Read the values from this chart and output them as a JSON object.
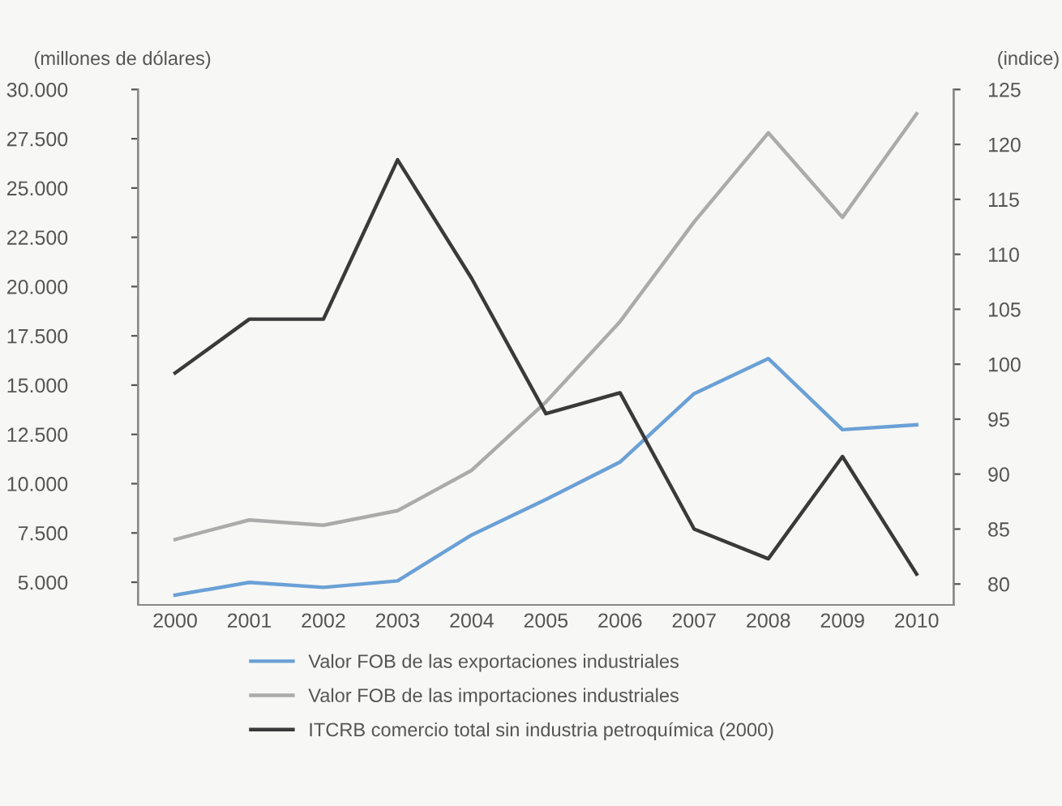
{
  "chart_data": {
    "type": "line",
    "ylabel": "(millones de dólares)",
    "y2label": "(indice)",
    "categories": [
      "2000",
      "2001",
      "2002",
      "2003",
      "2004",
      "2005",
      "2006",
      "2007",
      "2008",
      "2009",
      "2010"
    ],
    "series": [
      {
        "name": "Valor FOB de las exportaciones industriales",
        "color": "#6aa0d6",
        "values": [
          4350,
          4990,
          4740,
          5070,
          7400,
          9200,
          11100,
          14570,
          16350,
          12740,
          12990
        ]
      },
      {
        "name": "Valor FOB de las importaciones industriales",
        "color": "#ababab",
        "values": [
          7170,
          8160,
          7890,
          8630,
          10680,
          14140,
          18220,
          23280,
          27800,
          23510,
          28770
        ]
      },
      {
        "name": "ITCRB comercio total sin industria petroquímica (2000)",
        "color": "#3a3a3a",
        "axis": "y2",
        "values": [
          99.2,
          104.1,
          104.1,
          118.6,
          107.8,
          95.5,
          97.4,
          85.0,
          82.3,
          91.6,
          80.9
        ]
      }
    ],
    "ylim": [
      3850,
      30000
    ],
    "yticks": [
      {
        "value": 5000,
        "label": "5.000"
      },
      {
        "value": 7500,
        "label": "7.500"
      },
      {
        "value": 10000,
        "label": "10.000"
      },
      {
        "value": 12500,
        "label": "12.500"
      },
      {
        "value": 15000,
        "label": "15.000"
      },
      {
        "value": 17500,
        "label": "17.500"
      },
      {
        "value": 20000,
        "label": "20.000"
      },
      {
        "value": 22500,
        "label": "22.500"
      },
      {
        "value": 25000,
        "label": "25.000"
      },
      {
        "value": 27500,
        "label": "27.500"
      },
      {
        "value": 30000,
        "label": "30.000"
      }
    ],
    "y2lim": [
      78.1,
      125
    ],
    "y2ticks": [
      80,
      85,
      90,
      95,
      100,
      105,
      110,
      115,
      120,
      125
    ],
    "legend": "bottom",
    "grid": false,
    "marker": "none",
    "line_style": "solid"
  }
}
